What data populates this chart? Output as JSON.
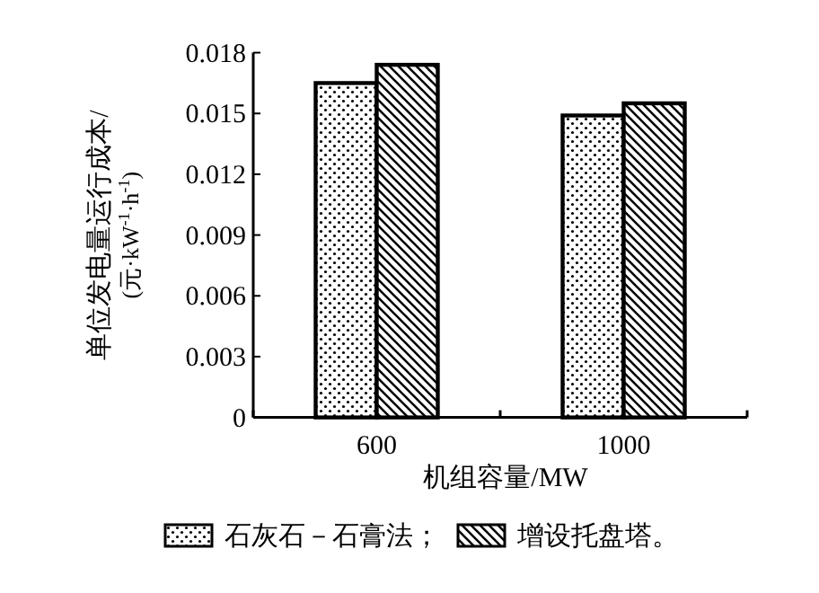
{
  "chart_data": {
    "type": "bar",
    "xlabel": "机组容量/MW",
    "ylabel": "单位发电量运行成本/(元·kW$^{-1}$·h$^{-1}$)",
    "categories": [
      "600",
      "1000"
    ],
    "series": [
      {
        "name": "石灰石－石膏法；",
        "color": "#000000",
        "values": [
          0.0165,
          0.0149
        ]
      },
      {
        "name": "增设托盘塔。",
        "color": "#000000",
        "values": [
          0.0174,
          0.0155
        ]
      }
    ],
    "ylim": [
      0,
      0.018
    ],
    "yticks": [
      0,
      0.003,
      0.006,
      0.009,
      0.012,
      0.015,
      0.018
    ],
    "legend": "bottom"
  }
}
